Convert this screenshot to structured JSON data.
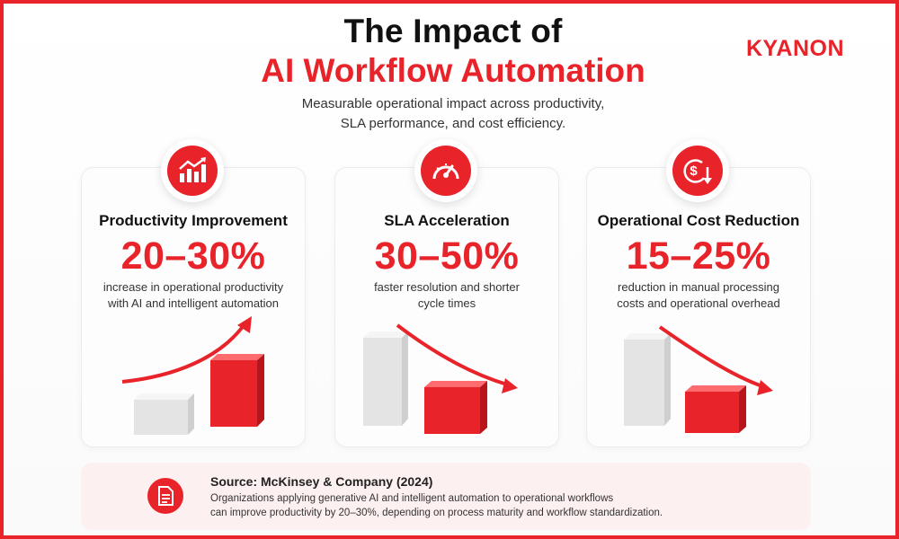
{
  "header": {
    "title_line1": "The Impact of",
    "title_line2": "AI Workflow Automation",
    "subtitle_line1": "Measurable operational impact across productivity,",
    "subtitle_line2": "SLA performance, and cost efficiency.",
    "logo_text": "KYANON"
  },
  "cards": [
    {
      "icon": "trending-up-chart-icon",
      "title": "Productivity Improvement",
      "value": "20–30%",
      "desc_line1": "increase in operational productivity",
      "desc_line2": "with AI and intelligent automation",
      "trend": "up"
    },
    {
      "icon": "speedometer-icon",
      "title": "SLA Acceleration",
      "value": "30–50%",
      "desc_line1": "faster resolution and shorter",
      "desc_line2": "cycle times",
      "trend": "down"
    },
    {
      "icon": "dollar-down-icon",
      "title": "Operational Cost Reduction",
      "value": "15–25%",
      "desc_line1": "reduction in manual processing",
      "desc_line2": "costs and operational overhead",
      "trend": "down"
    }
  ],
  "source": {
    "icon": "document-icon",
    "title": "Source: McKinsey & Company (2024)",
    "text_line1": "Organizations applying generative AI and intelligent automation to operational workflows",
    "text_line2": "can improve productivity by 20–30%, depending on process maturity and workflow standardization."
  },
  "colors": {
    "accent": "#e8232a",
    "text": "#111111",
    "source_bg": "#fdf0f0"
  }
}
